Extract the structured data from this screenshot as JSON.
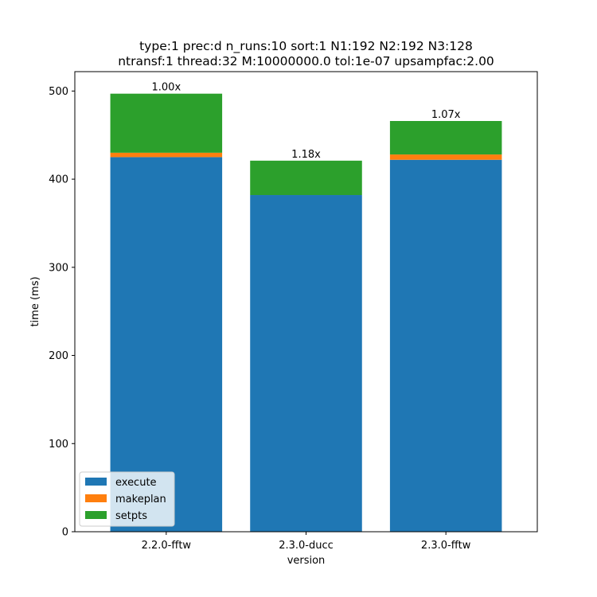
{
  "chart_data": {
    "type": "bar",
    "stacked": true,
    "title_line1": "type:1 prec:d n_runs:10 sort:1 N1:192 N2:192 N3:128",
    "title_line2": "ntransf:1 thread:32 M:10000000.0 tol:1e-07 upsampfac:2.00",
    "xlabel": "version",
    "ylabel": "time (ms)",
    "ylim": [
      0,
      522
    ],
    "yticks": [
      0,
      100,
      200,
      300,
      400,
      500
    ],
    "categories": [
      "2.2.0-fftw",
      "2.3.0-ducc",
      "2.3.0-fftw"
    ],
    "series": [
      {
        "name": "execute",
        "color": "#1f77b4",
        "values": [
          425,
          382,
          422
        ]
      },
      {
        "name": "makeplan",
        "color": "#ff7f0e",
        "values": [
          5,
          0,
          6
        ]
      },
      {
        "name": "setpts",
        "color": "#2ca02c",
        "values": [
          67,
          39,
          38
        ]
      }
    ],
    "bar_labels": [
      "1.00x",
      "1.18x",
      "1.07x"
    ],
    "legend_position": "lower-left",
    "grid": false
  }
}
